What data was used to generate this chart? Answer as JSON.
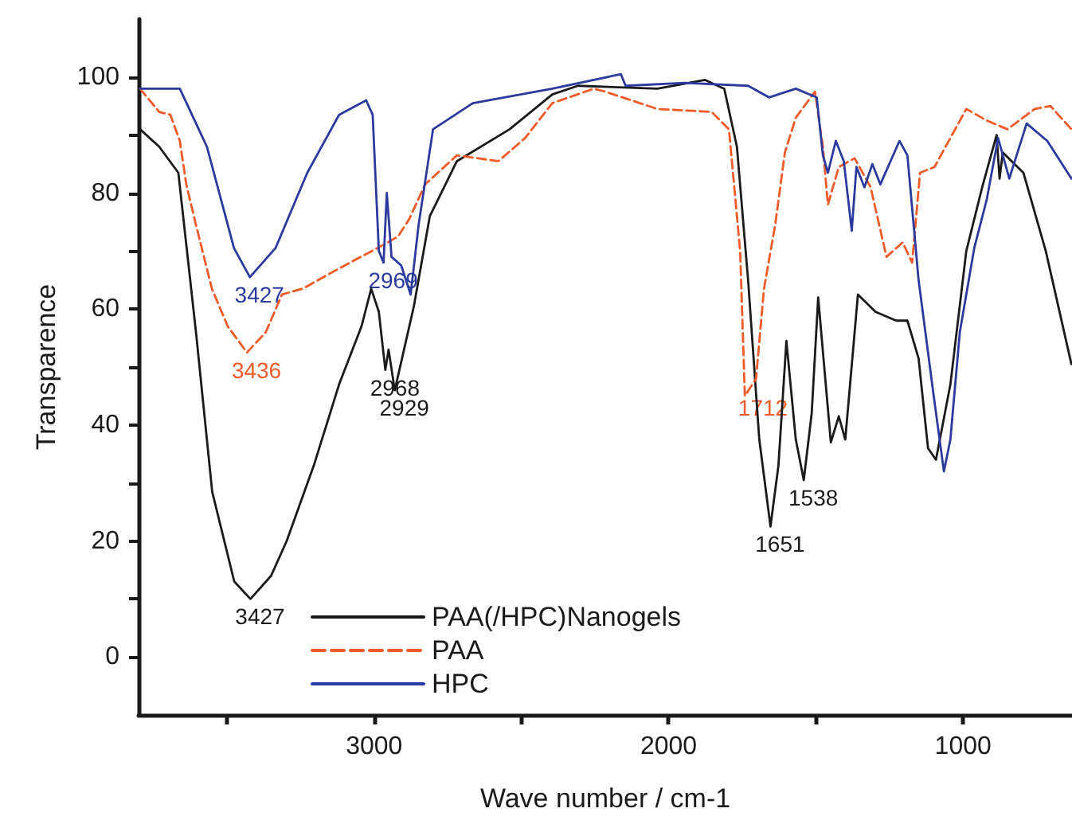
{
  "chart_data": {
    "type": "line",
    "xlabel": "Wave number / cm-1",
    "ylabel": "Transparence",
    "xlim": [
      3800,
      630
    ],
    "xticks": [
      {
        "value": 3500,
        "label": null
      },
      3000,
      {
        "value": 2500,
        "label": null
      },
      2000,
      {
        "value": 1500,
        "label": null
      },
      1000
    ],
    "ylim": [
      -10,
      110
    ],
    "yticks": [
      0,
      {
        "value": 10,
        "label": null
      },
      20,
      {
        "value": 30,
        "label": null
      },
      40,
      {
        "value": 50,
        "label": null
      },
      60,
      {
        "value": 70,
        "label": null
      },
      80,
      {
        "value": 90,
        "label": null
      },
      100
    ],
    "grid": false,
    "legend": "bottom left",
    "marker": "none",
    "series": [
      {
        "name": "PAA(/HPC)Nanogels",
        "color": "#1a1a1a",
        "line_style": "solid",
        "x": [
          3795,
          3730,
          3665,
          3605,
          3550,
          3475,
          3420,
          3350,
          3297,
          3205,
          3119,
          3043,
          3010,
          2984,
          2962,
          2951,
          2930,
          2903,
          2865,
          2811,
          2719,
          2540,
          2395,
          2308,
          2038,
          1876,
          1811,
          1768,
          1730,
          1692,
          1654,
          1627,
          1600,
          1568,
          1541,
          1514,
          1492,
          1449,
          1422,
          1400,
          1357,
          1297,
          1227,
          1189,
          1151,
          1119,
          1092,
          1043,
          989,
          935,
          886,
          876,
          865,
          795,
          719,
          632
        ],
        "values": [
          91,
          88,
          83.5,
          56,
          28.5,
          13,
          10,
          14,
          20,
          33,
          47,
          57,
          63.5,
          59.5,
          49.5,
          53,
          46,
          52,
          60.5,
          76,
          85.5,
          91,
          97,
          98.5,
          98,
          99.5,
          98,
          88,
          65,
          37.5,
          22.5,
          33,
          54.5,
          37.5,
          30.5,
          42,
          62,
          37,
          41.5,
          37.5,
          62.5,
          59.5,
          58,
          58,
          51.5,
          36,
          34,
          47,
          70,
          81,
          90,
          82.5,
          87,
          83.5,
          70,
          50.5
        ]
      },
      {
        "name": "PAA",
        "color": "#f05a28",
        "line_style": "dashed",
        "x": [
          3795,
          3730,
          3692,
          3660,
          3638,
          3605,
          3551,
          3497,
          3432,
          3368,
          3313,
          3243,
          3119,
          2989,
          2919,
          2881,
          2827,
          2719,
          2578,
          2487,
          2395,
          2254,
          2216,
          2038,
          1854,
          1795,
          1757,
          1741,
          1703,
          1676,
          1638,
          1605,
          1568,
          1503,
          1476,
          1459,
          1422,
          1368,
          1314,
          1260,
          1205,
          1173,
          1146,
          1097,
          989,
          919,
          849,
          757,
          703,
          632
        ],
        "values": [
          98,
          94,
          93.5,
          89,
          81.5,
          74.5,
          63.5,
          57,
          52.5,
          56,
          62.5,
          63.5,
          67,
          70.5,
          72.5,
          75.5,
          81.5,
          86.5,
          85.5,
          89.5,
          95.5,
          98,
          97.5,
          94.5,
          94,
          91,
          70,
          45,
          48,
          63.5,
          74.5,
          87,
          93,
          97.5,
          88,
          78,
          84.5,
          86,
          81,
          69,
          71.5,
          68,
          83.5,
          84.5,
          94.5,
          92.5,
          91,
          94.5,
          95,
          91
        ]
      },
      {
        "name": "HPC",
        "color": "#2b3a9e",
        "line_style": "solid",
        "x": [
          3795,
          3660,
          3568,
          3476,
          3422,
          3335,
          3227,
          3119,
          3027,
          3005,
          2984,
          2968,
          2957,
          2941,
          2908,
          2876,
          2849,
          2800,
          2665,
          2395,
          2162,
          2146,
          1946,
          1730,
          1659,
          1568,
          1497,
          1476,
          1459,
          1432,
          1405,
          1378,
          1362,
          1335,
          1308,
          1281,
          1216,
          1189,
          1151,
          1097,
          1065,
          1043,
          1011,
          962,
          919,
          881,
          843,
          784,
          714,
          632
        ],
        "values": [
          98,
          98,
          88,
          70.5,
          65.5,
          70.5,
          83.5,
          93.5,
          96,
          93.5,
          70,
          68,
          80,
          69,
          67.5,
          62.5,
          74.5,
          91,
          95.5,
          98,
          100.5,
          98.5,
          99,
          98.5,
          96.5,
          98,
          96.5,
          86.5,
          83.5,
          89,
          85.5,
          73.5,
          84.5,
          81,
          85,
          81.5,
          89,
          86.5,
          65,
          44,
          32,
          37.5,
          56,
          70.5,
          79,
          89.5,
          82.5,
          92,
          89,
          82.5
        ]
      }
    ],
    "annotations": [
      {
        "text": "3427",
        "x": 3422,
        "y": 65.5
      },
      {
        "text": "2969",
        "x": 2968,
        "y": 68
      },
      {
        "text": "3436",
        "x": 3432,
        "y": 52.5
      },
      {
        "text": "2968",
        "x": 2962,
        "y": 49.5
      },
      {
        "text": "2929",
        "x": 2930,
        "y": 46
      },
      {
        "text": "3427",
        "x": 3420,
        "y": 10
      },
      {
        "text": "1712",
        "x": 1712,
        "y": 46
      },
      {
        "text": "1538",
        "x": 1541,
        "y": 30.5
      },
      {
        "text": "1651",
        "x": 1654,
        "y": 22.5
      }
    ]
  }
}
